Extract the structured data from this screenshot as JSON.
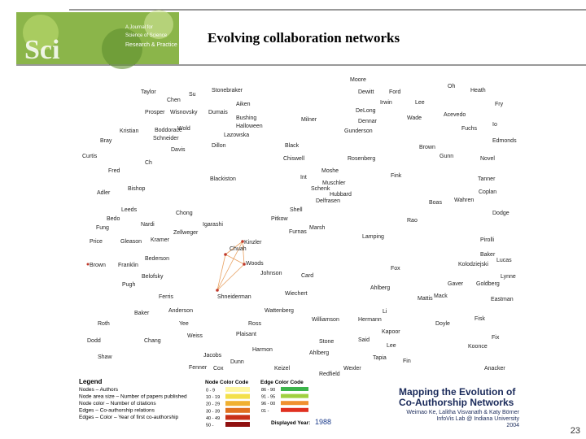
{
  "header": {
    "logo": {
      "mark": "Sci",
      "lines": [
        "A Journal for",
        "Science of Science",
        "Research & Practice"
      ]
    },
    "title": "Evolving collaboration networks"
  },
  "network": {
    "nodes": [
      "Taylor",
      "Su",
      "Stonebraker",
      "Chen",
      "Dewitt",
      "Ford",
      "Oh",
      "Heath",
      "Aiken",
      "Irwin",
      "Lee",
      "Acevedo",
      "Fry",
      "Prosper",
      "Wisnovsky",
      "Dumais",
      "DeLong",
      "Bushing",
      "Halloween",
      "Milner",
      "Dennar",
      "Wade",
      "Kristian",
      "Boddorace",
      "Wold",
      "Lazowska",
      "Gunderson",
      "Fuchs",
      "Bray",
      "Schneider",
      "Dillon",
      "Black",
      "Brown",
      "Io",
      "Edmonds",
      "Curtis",
      "Ch",
      "Davis",
      "Chiswell",
      "Rosenberg",
      "Gunn",
      "Novel",
      "Fred",
      "Blackiston",
      "Int",
      "Moshe",
      "Fink",
      "Tanner",
      "Adler",
      "Bishop",
      "Schenk",
      "Muschler",
      "Hubbard",
      "Delfrasen",
      "Boas",
      "Wahren",
      "Coplan",
      "Leeds",
      "Chong",
      "Shell",
      "Pitkow",
      "Dodge",
      "Bedo",
      "Nardi",
      "Igarashi",
      "Zellweger",
      "Marsh",
      "Rao",
      "Fung",
      "Gleason",
      "Kramer",
      "Kinzler",
      "Furnas",
      "Lamping",
      "Pirolli",
      "Price",
      "Chuah",
      "Woods",
      "Bederson",
      "Brown",
      "Franklin",
      "Baker",
      "Kolodziejski",
      "Lucas",
      "Lynne",
      "Johnson",
      "Card",
      "Fox",
      "Belofsky",
      "Pugh",
      "Ferris",
      "Shneiderman",
      "Wiechert",
      "Ahlberg",
      "Gaver",
      "Goldberg",
      "Mattis",
      "Mack",
      "Eastman",
      "Baker",
      "Anderson",
      "Wattenberg",
      "Li",
      "Fisk",
      "Roth",
      "Yee",
      "Ross",
      "Williamson",
      "Hermann",
      "Doyle",
      "Kapoor",
      "Fix",
      "Dodd",
      "Chang",
      "Plaisant",
      "Weiss",
      "Stone",
      "Said",
      "Lee",
      "Koonce",
      "Harmon",
      "Ahlberg",
      "Shaw",
      "Jacobs",
      "Dunn",
      "Tapia",
      "Fin",
      "Fenner",
      "Cox",
      "Keizel",
      "Wexler",
      "Redfield",
      "Anacker",
      "Moore"
    ]
  },
  "legend": {
    "title": "Legend",
    "lines": [
      "Nodes – Authors",
      "Node area size – Number of papers published",
      "Node color – Number of citations",
      "Edges – Co-authorship relations",
      "Edges – Color – Year of first co-authorship"
    ],
    "node_color_code": {
      "title": "Node Color Code",
      "items": [
        {
          "label": "0 - 9",
          "color": "#fff7a0"
        },
        {
          "label": "10 - 19",
          "color": "#f3e04a"
        },
        {
          "label": "20 - 29",
          "color": "#f0b030"
        },
        {
          "label": "30 - 39",
          "color": "#e07020"
        },
        {
          "label": "40 - 49",
          "color": "#c83018"
        },
        {
          "label": "50 -",
          "color": "#901010"
        }
      ]
    },
    "edge_color_code": {
      "title": "Edge Color Code",
      "items": [
        {
          "label": "86 - 90",
          "color": "#3cb44b"
        },
        {
          "label": "91 - 95",
          "color": "#a0d040"
        },
        {
          "label": "96 - 00",
          "color": "#f09030"
        },
        {
          "label": "01 -",
          "color": "#e03020"
        }
      ]
    },
    "displayed_year_label": "Displayed Year:",
    "displayed_year": "1988"
  },
  "credits": {
    "title_lines": [
      "Mapping the Evolution of",
      "Co-Authorship Networks"
    ],
    "lines": [
      "Weimao Ke, Lalitha Visvanath & Katy Börner",
      "InfoVis Lab @ Indiana University",
      "2004"
    ]
  },
  "page_number": "23"
}
